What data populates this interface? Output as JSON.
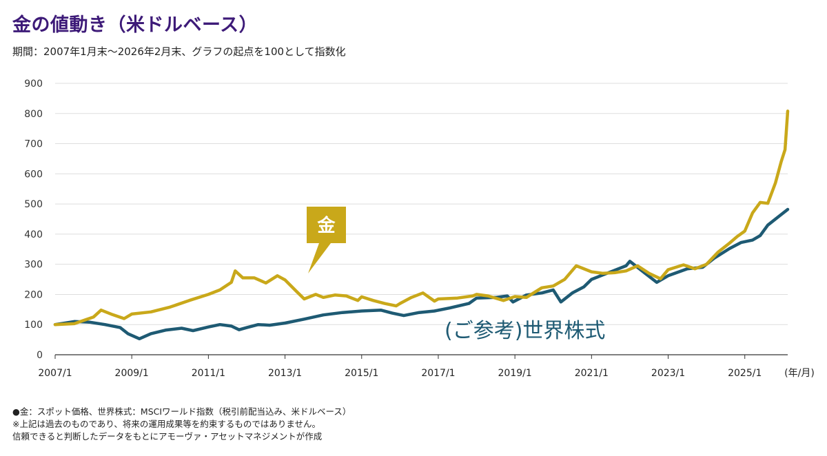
{
  "title": "金の値動き（米ドルベース）",
  "subtitle": "期間：2007年1月末～2026年2月末、グラフの起点を100として指数化",
  "colors": {
    "gold": "#c9a81a",
    "world": "#1e5a73",
    "title": "#3d1a78",
    "grid": "#dedede",
    "axis": "#333333"
  },
  "chart_data": {
    "type": "line",
    "title": "金の値動き（米ドルベース）",
    "xlabel": "(年/月)",
    "ylabel": "",
    "x_start": 2007.0,
    "x_end": 2026.12,
    "ylim": [
      0,
      900
    ],
    "yticks": [
      0,
      100,
      200,
      300,
      400,
      500,
      600,
      700,
      800,
      900
    ],
    "xtick_labels": [
      {
        "x": 2007,
        "label": "2007/1"
      },
      {
        "x": 2009,
        "label": "2009/1"
      },
      {
        "x": 2011,
        "label": "2011/1"
      },
      {
        "x": 2013,
        "label": "2013/1"
      },
      {
        "x": 2015,
        "label": "2015/1"
      },
      {
        "x": 2017,
        "label": "2017/1"
      },
      {
        "x": 2019,
        "label": "2019/1"
      },
      {
        "x": 2021,
        "label": "2021/1"
      },
      {
        "x": 2023,
        "label": "2023/1"
      },
      {
        "x": 2025,
        "label": "2025/1"
      }
    ],
    "grid": true,
    "series": [
      {
        "name": "金",
        "label": "金",
        "color": "#c9a81a",
        "points": [
          [
            2007.0,
            100
          ],
          [
            2007.5,
            103
          ],
          [
            2008.0,
            125
          ],
          [
            2008.2,
            148
          ],
          [
            2008.5,
            133
          ],
          [
            2008.8,
            120
          ],
          [
            2009.0,
            135
          ],
          [
            2009.5,
            142
          ],
          [
            2010.0,
            158
          ],
          [
            2010.5,
            180
          ],
          [
            2011.0,
            200
          ],
          [
            2011.3,
            215
          ],
          [
            2011.6,
            240
          ],
          [
            2011.7,
            278
          ],
          [
            2011.9,
            255
          ],
          [
            2012.2,
            255
          ],
          [
            2012.5,
            238
          ],
          [
            2012.8,
            262
          ],
          [
            2013.0,
            248
          ],
          [
            2013.3,
            210
          ],
          [
            2013.5,
            185
          ],
          [
            2013.8,
            200
          ],
          [
            2014.0,
            190
          ],
          [
            2014.3,
            198
          ],
          [
            2014.6,
            195
          ],
          [
            2014.9,
            180
          ],
          [
            2015.0,
            192
          ],
          [
            2015.3,
            180
          ],
          [
            2015.6,
            170
          ],
          [
            2015.9,
            162
          ],
          [
            2016.0,
            170
          ],
          [
            2016.3,
            190
          ],
          [
            2016.6,
            205
          ],
          [
            2016.9,
            178
          ],
          [
            2017.0,
            185
          ],
          [
            2017.5,
            188
          ],
          [
            2017.9,
            195
          ],
          [
            2018.0,
            200
          ],
          [
            2018.3,
            195
          ],
          [
            2018.7,
            180
          ],
          [
            2019.0,
            193
          ],
          [
            2019.3,
            190
          ],
          [
            2019.7,
            222
          ],
          [
            2020.0,
            228
          ],
          [
            2020.3,
            250
          ],
          [
            2020.6,
            295
          ],
          [
            2020.7,
            290
          ],
          [
            2021.0,
            275
          ],
          [
            2021.3,
            270
          ],
          [
            2021.6,
            272
          ],
          [
            2021.9,
            278
          ],
          [
            2022.2,
            295
          ],
          [
            2022.5,
            270
          ],
          [
            2022.8,
            252
          ],
          [
            2023.0,
            282
          ],
          [
            2023.4,
            298
          ],
          [
            2023.7,
            285
          ],
          [
            2024.0,
            300
          ],
          [
            2024.3,
            340
          ],
          [
            2024.6,
            370
          ],
          [
            2024.8,
            392
          ],
          [
            2025.0,
            410
          ],
          [
            2025.2,
            470
          ],
          [
            2025.4,
            505
          ],
          [
            2025.6,
            502
          ],
          [
            2025.8,
            570
          ],
          [
            2025.95,
            640
          ],
          [
            2026.05,
            680
          ],
          [
            2026.12,
            808
          ]
        ]
      },
      {
        "name": "(ご参考)世界株式",
        "label": "(ご参考)世界株式",
        "color": "#1e5a73",
        "points": [
          [
            2007.0,
            100
          ],
          [
            2007.5,
            110
          ],
          [
            2007.9,
            108
          ],
          [
            2008.3,
            100
          ],
          [
            2008.7,
            90
          ],
          [
            2008.9,
            70
          ],
          [
            2009.2,
            53
          ],
          [
            2009.5,
            70
          ],
          [
            2009.9,
            82
          ],
          [
            2010.3,
            88
          ],
          [
            2010.6,
            80
          ],
          [
            2011.0,
            92
          ],
          [
            2011.3,
            100
          ],
          [
            2011.6,
            95
          ],
          [
            2011.8,
            83
          ],
          [
            2012.0,
            90
          ],
          [
            2012.3,
            100
          ],
          [
            2012.6,
            98
          ],
          [
            2013.0,
            105
          ],
          [
            2013.5,
            118
          ],
          [
            2014.0,
            132
          ],
          [
            2014.5,
            140
          ],
          [
            2015.0,
            145
          ],
          [
            2015.5,
            148
          ],
          [
            2015.8,
            138
          ],
          [
            2016.1,
            130
          ],
          [
            2016.5,
            140
          ],
          [
            2016.9,
            145
          ],
          [
            2017.3,
            155
          ],
          [
            2017.8,
            170
          ],
          [
            2018.0,
            188
          ],
          [
            2018.5,
            190
          ],
          [
            2018.8,
            195
          ],
          [
            2018.95,
            175
          ],
          [
            2019.3,
            198
          ],
          [
            2019.7,
            205
          ],
          [
            2020.0,
            215
          ],
          [
            2020.2,
            175
          ],
          [
            2020.5,
            205
          ],
          [
            2020.8,
            225
          ],
          [
            2021.0,
            250
          ],
          [
            2021.4,
            270
          ],
          [
            2021.9,
            295
          ],
          [
            2022.0,
            310
          ],
          [
            2022.4,
            270
          ],
          [
            2022.7,
            240
          ],
          [
            2023.0,
            262
          ],
          [
            2023.5,
            285
          ],
          [
            2023.9,
            290
          ],
          [
            2024.2,
            320
          ],
          [
            2024.6,
            352
          ],
          [
            2024.9,
            372
          ],
          [
            2025.2,
            380
          ],
          [
            2025.4,
            395
          ],
          [
            2025.6,
            430
          ],
          [
            2025.9,
            460
          ],
          [
            2026.12,
            482
          ]
        ]
      }
    ]
  },
  "footnotes": [
    "●金：スポット価格、世界株式：MSCIワールド指数（税引前配当込み、米ドルベース）",
    "※上記は過去のものであり、将来の運用成果等を約束するものではありません。",
    "信頼できると判断したデータをもとにアモーヴァ・アセットマネジメントが作成"
  ]
}
